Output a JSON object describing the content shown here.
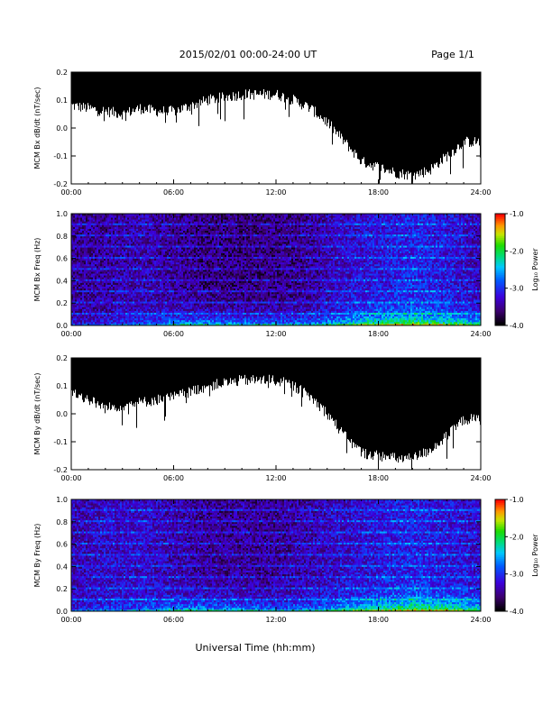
{
  "header": {
    "title": "2015/02/01   00:00-24:00 UT",
    "page": "Page 1/1"
  },
  "footer": {
    "xlabel": "Universal Time (hh:mm)"
  },
  "chart_data": [
    {
      "type": "line",
      "ylabel": "MCM Bx dB/dt (nT/sec)",
      "xlabel": "",
      "x_ticks": [
        "00:00",
        "06:00",
        "12:00",
        "18:00",
        "24:00"
      ],
      "y_ticks": [
        "-0.2",
        "-0.1",
        "0.0",
        "0.1",
        "0.2"
      ],
      "xlim": [
        0,
        24
      ],
      "ylim": [
        -0.2,
        0.2
      ],
      "series": [
        {
          "x": [
            0,
            1,
            2,
            3,
            4,
            5,
            6,
            7,
            8,
            9,
            10,
            11,
            12,
            13,
            14,
            15,
            16,
            17,
            18,
            19,
            20,
            21,
            22,
            23,
            24
          ],
          "lower_envelope": [
            0.08,
            0.07,
            0.06,
            0.05,
            0.07,
            0.06,
            0.06,
            0.08,
            0.1,
            0.11,
            0.12,
            0.12,
            0.12,
            0.1,
            0.07,
            0.02,
            -0.05,
            -0.12,
            -0.14,
            -0.16,
            -0.17,
            -0.15,
            -0.1,
            -0.05,
            -0.05
          ],
          "upper_envelope": [
            0.2,
            0.2,
            0.2,
            0.2,
            0.2,
            0.2,
            0.2,
            0.2,
            0.2,
            0.2,
            0.2,
            0.2,
            0.2,
            0.2,
            0.2,
            0.2,
            0.2,
            0.2,
            0.2,
            0.2,
            0.2,
            0.2,
            0.2,
            0.2,
            0.2
          ]
        }
      ]
    },
    {
      "type": "heatmap",
      "ylabel": "MCM Bx Freq (Hz)",
      "x_ticks": [
        "00:00",
        "06:00",
        "12:00",
        "18:00",
        "24:00"
      ],
      "y_ticks": [
        "0.0",
        "0.2",
        "0.4",
        "0.6",
        "0.8",
        "1.0"
      ],
      "xlim": [
        0,
        24
      ],
      "ylim": [
        0,
        1
      ],
      "colorbar": {
        "label": "Log₁₀ Power",
        "ticks": [
          "-1.0",
          "-2.0",
          "-3.0",
          "-4.0"
        ],
        "range": [
          -4,
          -1
        ]
      },
      "x": [
        0,
        2,
        4,
        6,
        8,
        10,
        12,
        14,
        16,
        18,
        20,
        22,
        24
      ],
      "log_power_near_0Hz": [
        -3.2,
        -3.0,
        -2.9,
        -2.5,
        -2.4,
        -2.5,
        -2.6,
        -2.6,
        -2.2,
        -1.8,
        -1.6,
        -1.8,
        -2.2
      ],
      "log_power_above_0.2Hz": [
        -3.5,
        -3.5,
        -3.4,
        -3.5,
        -3.6,
        -3.6,
        -3.6,
        -3.5,
        -3.3,
        -3.2,
        -3.1,
        -3.2,
        -3.4
      ]
    },
    {
      "type": "line",
      "ylabel": "MCM By dB/dt (nT/sec)",
      "xlabel": "",
      "x_ticks": [
        "00:00",
        "06:00",
        "12:00",
        "18:00",
        "24:00"
      ],
      "y_ticks": [
        "-0.2",
        "-0.1",
        "0.0",
        "0.1",
        "0.2"
      ],
      "xlim": [
        0,
        24
      ],
      "ylim": [
        -0.2,
        0.2
      ],
      "series": [
        {
          "x": [
            0,
            1,
            2,
            3,
            4,
            5,
            6,
            7,
            8,
            9,
            10,
            11,
            12,
            13,
            14,
            15,
            16,
            17,
            18,
            19,
            20,
            21,
            22,
            23,
            24
          ],
          "lower_envelope": [
            0.08,
            0.05,
            0.02,
            0.03,
            0.04,
            0.05,
            0.06,
            0.08,
            0.1,
            0.11,
            0.12,
            0.12,
            0.12,
            0.1,
            0.06,
            0.0,
            -0.08,
            -0.14,
            -0.15,
            -0.16,
            -0.16,
            -0.13,
            -0.08,
            -0.02,
            -0.02
          ],
          "upper_envelope": [
            0.2,
            0.2,
            0.2,
            0.2,
            0.2,
            0.2,
            0.2,
            0.2,
            0.2,
            0.2,
            0.2,
            0.2,
            0.2,
            0.2,
            0.2,
            0.2,
            0.2,
            0.2,
            0.2,
            0.2,
            0.2,
            0.2,
            0.2,
            0.2,
            0.2
          ]
        }
      ]
    },
    {
      "type": "heatmap",
      "ylabel": "MCM By Freq (Hz)",
      "x_ticks": [
        "00:00",
        "06:00",
        "12:00",
        "18:00",
        "24:00"
      ],
      "y_ticks": [
        "0.0",
        "0.2",
        "0.4",
        "0.6",
        "0.8",
        "1.0"
      ],
      "xlim": [
        0,
        24
      ],
      "ylim": [
        0,
        1
      ],
      "colorbar": {
        "label": "Log₁₀ Power",
        "ticks": [
          "-1.0",
          "-2.0",
          "-3.0",
          "-4.0"
        ],
        "range": [
          -4,
          -1
        ]
      },
      "x": [
        0,
        2,
        4,
        6,
        8,
        10,
        12,
        14,
        16,
        18,
        20,
        22,
        24
      ],
      "log_power_near_0Hz": [
        -3.1,
        -2.9,
        -2.8,
        -2.4,
        -2.4,
        -2.5,
        -2.6,
        -2.6,
        -2.2,
        -1.9,
        -1.6,
        -1.7,
        -2.1
      ],
      "log_power_above_0.2Hz": [
        -3.4,
        -3.3,
        -3.3,
        -3.4,
        -3.5,
        -3.5,
        -3.5,
        -3.4,
        -3.3,
        -3.2,
        -3.1,
        -3.2,
        -3.3
      ]
    }
  ]
}
